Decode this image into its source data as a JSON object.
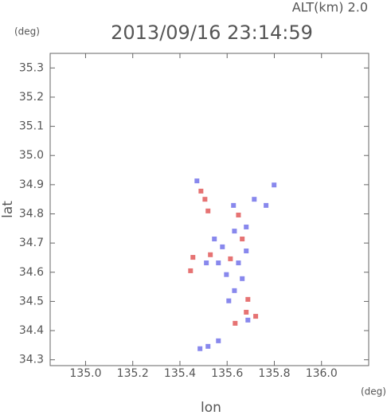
{
  "chart_data": {
    "type": "scatter",
    "title": "2013/09/16 23:14:59",
    "subtitle": "ALT(km)  2.0",
    "y_unit": "(deg)",
    "x_unit": "(deg)",
    "x_label": "lon",
    "y_label": "lat",
    "xlim": [
      134.85,
      136.2
    ],
    "ylim": [
      34.28,
      35.35
    ],
    "xticks": [
      {
        "value": 135,
        "label": "135.0"
      },
      135.2,
      135.4,
      135.6,
      135.8,
      {
        "value": 136,
        "label": "136.0"
      }
    ],
    "yticks": [
      34.3,
      34.4,
      34.5,
      34.6,
      34.7,
      34.8,
      34.9,
      {
        "value": 35,
        "label": "35.0"
      },
      35.1,
      35.2,
      35.3
    ],
    "x": [
      135.472,
      135.489,
      135.506,
      135.519,
      135.627,
      135.648,
      135.715,
      135.765,
      135.799,
      135.681,
      135.546,
      135.58,
      135.529,
      135.455,
      135.614,
      135.648,
      135.681,
      135.563,
      135.664,
      135.597,
      135.445,
      135.631,
      135.607,
      135.688,
      135.681,
      135.721,
      135.688,
      135.634,
      135.664,
      135.631,
      135.512,
      135.519,
      135.563,
      135.485
    ],
    "values": [
      34.913,
      34.878,
      34.85,
      34.81,
      34.829,
      34.796,
      34.85,
      34.829,
      34.899,
      34.755,
      34.714,
      34.687,
      34.66,
      34.651,
      34.646,
      34.632,
      34.673,
      34.632,
      34.578,
      34.592,
      34.605,
      34.537,
      34.502,
      34.507,
      34.463,
      34.449,
      34.436,
      34.425,
      34.714,
      34.741,
      34.632,
      34.346,
      34.365,
      34.338
    ],
    "colors": [
      "#6a6ae8",
      "#e05050",
      "#e05050",
      "#e05050",
      "#6a6ae8",
      "#e05050",
      "#6a6ae8",
      "#6a6ae8",
      "#6a6ae8",
      "#6a6ae8",
      "#6a6ae8",
      "#6a6ae8",
      "#e05050",
      "#e05050",
      "#e05050",
      "#6a6ae8",
      "#6a6ae8",
      "#6a6ae8",
      "#6a6ae8",
      "#6a6ae8",
      "#e05050",
      "#6a6ae8",
      "#6a6ae8",
      "#e05050",
      "#e05050",
      "#e05050",
      "#6a6ae8",
      "#e05050",
      "#e05050",
      "#6a6ae8",
      "#6a6ae8",
      "#6a6ae8",
      "#6a6ae8",
      "#6a6ae8"
    ]
  }
}
